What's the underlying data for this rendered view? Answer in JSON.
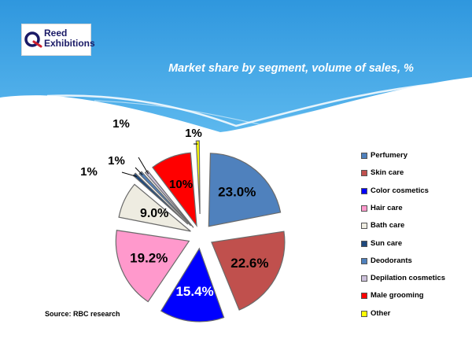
{
  "slide": {
    "logo_text": [
      "Reed",
      "Exhibitions"
    ],
    "title": "Market share by segment, volume of sales, %",
    "source": "Source: RBC research"
  },
  "colors": {
    "header": "#3aa2e4",
    "logo_brand": "#1a1a66",
    "logo_accent": "#d01f2f"
  },
  "chart_data": {
    "type": "pie",
    "title": "Market share by segment, volume of sales, %",
    "exploded": true,
    "legend_position": "right",
    "slices": [
      {
        "label": "Perfumery",
        "value": 23.0,
        "display": "23.0%",
        "color": "#4f81bd"
      },
      {
        "label": "Skin care",
        "value": 22.6,
        "display": "22.6%",
        "color": "#c0504d"
      },
      {
        "label": "Color cosmetics",
        "value": 15.4,
        "display": "15.4%",
        "color": "#0000ff"
      },
      {
        "label": "Hair care",
        "value": 19.2,
        "display": "19.2%",
        "color": "#ff99cc"
      },
      {
        "label": "Bath care",
        "value": 9.0,
        "display": "9.0%",
        "color": "#eeece1"
      },
      {
        "label": "Sun care",
        "value": 1,
        "display": "1%",
        "color": "#1f497d"
      },
      {
        "label": "Deodorants",
        "value": 1,
        "display": "1%",
        "color": "#4f81bd"
      },
      {
        "label": "Depilation cosmetics",
        "value": 1,
        "display": "1%",
        "color": "#ccc0da"
      },
      {
        "label": "Male grooming",
        "value": 10,
        "display": "10%",
        "color": "#ff0000"
      },
      {
        "label": "Other",
        "value": 1,
        "display": "1%",
        "color": "#ffff00"
      }
    ]
  }
}
